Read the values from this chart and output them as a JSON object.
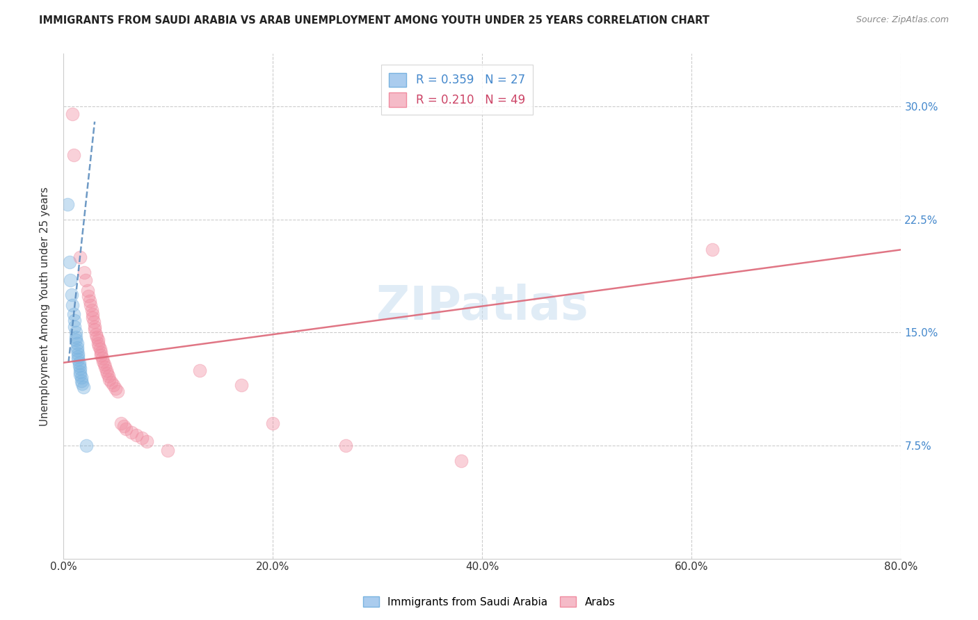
{
  "title": "IMMIGRANTS FROM SAUDI ARABIA VS ARAB UNEMPLOYMENT AMONG YOUTH UNDER 25 YEARS CORRELATION CHART",
  "source": "Source: ZipAtlas.com",
  "xlabel_ticks": [
    "0.0%",
    "20.0%",
    "40.0%",
    "60.0%",
    "80.0%"
  ],
  "xlabel_vals": [
    0.0,
    0.2,
    0.4,
    0.6,
    0.8
  ],
  "ylabel_ticks": [
    "7.5%",
    "15.0%",
    "22.5%",
    "30.0%"
  ],
  "ylabel_vals": [
    0.075,
    0.15,
    0.225,
    0.3
  ],
  "ylabel_label": "Unemployment Among Youth under 25 years",
  "xlim": [
    0.0,
    0.8
  ],
  "ylim": [
    0.0,
    0.335
  ],
  "legend_r1": "R = 0.359   N = 27",
  "legend_r2": "R = 0.210   N = 49",
  "watermark": "ZIPatlas",
  "blue_scatter_x": [
    0.004,
    0.006,
    0.007,
    0.008,
    0.009,
    0.01,
    0.011,
    0.011,
    0.012,
    0.012,
    0.012,
    0.013,
    0.013,
    0.013,
    0.014,
    0.014,
    0.014,
    0.015,
    0.015,
    0.016,
    0.016,
    0.016,
    0.017,
    0.017,
    0.018,
    0.019,
    0.022
  ],
  "blue_scatter_y": [
    0.235,
    0.197,
    0.185,
    0.175,
    0.168,
    0.162,
    0.158,
    0.154,
    0.15,
    0.147,
    0.145,
    0.143,
    0.14,
    0.138,
    0.136,
    0.134,
    0.132,
    0.13,
    0.128,
    0.126,
    0.124,
    0.122,
    0.12,
    0.118,
    0.116,
    0.114,
    0.075
  ],
  "pink_scatter_x": [
    0.009,
    0.01,
    0.016,
    0.02,
    0.021,
    0.023,
    0.024,
    0.025,
    0.026,
    0.027,
    0.028,
    0.028,
    0.029,
    0.03,
    0.03,
    0.031,
    0.032,
    0.033,
    0.033,
    0.034,
    0.035,
    0.036,
    0.036,
    0.037,
    0.038,
    0.039,
    0.04,
    0.041,
    0.042,
    0.043,
    0.044,
    0.046,
    0.048,
    0.05,
    0.052,
    0.055,
    0.058,
    0.06,
    0.065,
    0.07,
    0.075,
    0.08,
    0.1,
    0.13,
    0.17,
    0.2,
    0.27,
    0.38,
    0.62
  ],
  "pink_scatter_y": [
    0.295,
    0.268,
    0.2,
    0.19,
    0.185,
    0.178,
    0.174,
    0.171,
    0.168,
    0.165,
    0.162,
    0.16,
    0.157,
    0.154,
    0.152,
    0.149,
    0.147,
    0.145,
    0.143,
    0.141,
    0.139,
    0.137,
    0.135,
    0.133,
    0.131,
    0.129,
    0.127,
    0.125,
    0.123,
    0.121,
    0.119,
    0.117,
    0.115,
    0.113,
    0.111,
    0.09,
    0.088,
    0.086,
    0.084,
    0.082,
    0.08,
    0.078,
    0.072,
    0.125,
    0.115,
    0.09,
    0.075,
    0.065,
    0.205
  ],
  "blue_line_x": [
    0.005,
    0.03
  ],
  "blue_line_y": [
    0.13,
    0.29
  ],
  "pink_line_x": [
    0.0,
    0.8
  ],
  "pink_line_y": [
    0.13,
    0.205
  ],
  "scatter_size": 180,
  "scatter_alpha": 0.4,
  "blue_color": "#7ab3e0",
  "pink_color": "#f08ca0",
  "blue_line_color": "#5588bb",
  "pink_line_color": "#dd6677",
  "background_color": "#ffffff",
  "grid_color": "#cccccc"
}
